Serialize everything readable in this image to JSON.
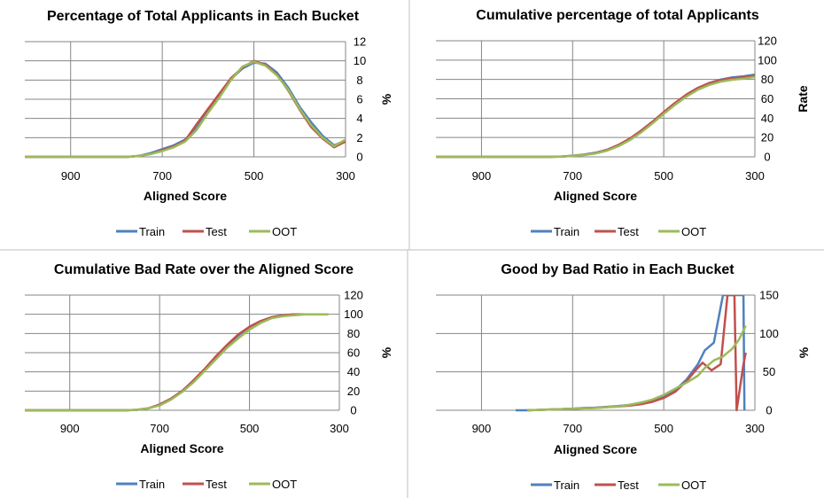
{
  "charts": [
    {
      "title": "Percentage of Total Applicants in Each Bucket",
      "xlabel": "Aligned Score",
      "ylabel": "%",
      "xlim": [
        1000,
        300
      ],
      "x_ticks": [
        900,
        700,
        500,
        300
      ],
      "ylim": [
        0,
        12
      ],
      "y_ticks": [
        0,
        2,
        4,
        6,
        8,
        10,
        12
      ],
      "legend": [
        "Train",
        "Test",
        "OOT"
      ]
    },
    {
      "title": "Cumulative percentage of total Applicants",
      "xlabel": "Aligned Score",
      "ylabel": "Rate",
      "xlim": [
        1000,
        300
      ],
      "x_ticks": [
        900,
        700,
        500,
        300
      ],
      "ylim": [
        0,
        120
      ],
      "y_ticks": [
        0,
        20,
        40,
        60,
        80,
        100,
        120
      ],
      "legend": [
        "Train",
        "Test",
        "OOT"
      ]
    },
    {
      "title": "Cumulative Bad Rate over the Aligned Score",
      "xlabel": "Aligned Score",
      "ylabel": "%",
      "xlim": [
        1000,
        300
      ],
      "x_ticks": [
        900,
        700,
        500,
        300
      ],
      "ylim": [
        0,
        120
      ],
      "y_ticks": [
        0,
        20,
        40,
        60,
        80,
        100,
        120
      ],
      "legend": [
        "Train",
        "Test",
        "OOT"
      ]
    },
    {
      "title": "Good by Bad Ratio in Each Bucket",
      "xlabel": "Aligned Score",
      "ylabel": "%",
      "xlim": [
        1000,
        300
      ],
      "x_ticks": [
        900,
        700,
        500,
        300
      ],
      "ylim": [
        0,
        150
      ],
      "y_ticks": [
        0,
        50,
        100,
        150
      ],
      "legend": [
        "Train",
        "Test",
        "OOT"
      ]
    }
  ],
  "chart_data": [
    {
      "type": "line",
      "title": "Percentage of Total Applicants in Each Bucket",
      "xlabel": "Aligned Score",
      "ylabel": "%",
      "xlim": [
        1000,
        300
      ],
      "ylim": [
        0,
        12
      ],
      "grid": true,
      "legend_position": "bottom",
      "x": [
        1000,
        975,
        950,
        925,
        900,
        875,
        850,
        825,
        800,
        775,
        750,
        725,
        700,
        675,
        650,
        625,
        600,
        575,
        550,
        525,
        500,
        475,
        450,
        425,
        400,
        375,
        350,
        325,
        300
      ],
      "series": [
        {
          "name": "Train",
          "color": "#4f81bd",
          "values": [
            0,
            0,
            0,
            0,
            0,
            0,
            0,
            0,
            0,
            0,
            0.1,
            0.4,
            0.8,
            1.2,
            1.8,
            3.0,
            4.8,
            6.3,
            8.1,
            9.2,
            9.8,
            9.7,
            8.8,
            7.2,
            5.2,
            3.6,
            2.2,
            1.2,
            1.7
          ]
        },
        {
          "name": "Test",
          "color": "#c0504d",
          "values": [
            0,
            0,
            0,
            0,
            0,
            0,
            0,
            0,
            0,
            0,
            0.1,
            0.3,
            0.7,
            1.1,
            1.7,
            3.4,
            5.0,
            6.6,
            8.2,
            9.3,
            10.0,
            9.6,
            8.6,
            6.9,
            4.9,
            3.1,
            1.9,
            1.0,
            1.6
          ]
        },
        {
          "name": "OOT",
          "color": "#9bbb59",
          "values": [
            0,
            0,
            0,
            0,
            0,
            0,
            0,
            0,
            0,
            0,
            0.1,
            0.3,
            0.6,
            1.0,
            1.6,
            2.8,
            4.6,
            6.2,
            8.0,
            9.4,
            9.9,
            9.5,
            8.5,
            7.0,
            5.0,
            3.3,
            2.0,
            1.1,
            1.8
          ]
        }
      ]
    },
    {
      "type": "line",
      "title": "Cumulative percentage of total Applicants",
      "xlabel": "Aligned Score",
      "ylabel": "Rate",
      "xlim": [
        1000,
        300
      ],
      "ylim": [
        0,
        120
      ],
      "grid": true,
      "legend_position": "bottom",
      "x": [
        1000,
        975,
        950,
        925,
        900,
        875,
        850,
        825,
        800,
        775,
        750,
        725,
        700,
        675,
        650,
        625,
        600,
        575,
        550,
        525,
        500,
        475,
        450,
        425,
        400,
        375,
        350,
        325,
        300
      ],
      "series": [
        {
          "name": "Train",
          "color": "#4f81bd",
          "values": [
            0,
            0,
            0,
            0,
            0,
            0,
            0,
            0,
            0,
            0,
            0,
            0.4,
            1.2,
            2.4,
            4.2,
            7.2,
            12.0,
            18.3,
            26.4,
            35.6,
            45.4,
            55.1,
            63.9,
            71.1,
            76.3,
            79.9,
            82.1,
            83.3,
            85.0
          ]
        },
        {
          "name": "Test",
          "color": "#c0504d",
          "values": [
            0,
            0,
            0,
            0,
            0,
            0,
            0,
            0,
            0,
            0,
            0,
            0.3,
            1.0,
            2.1,
            3.8,
            7.2,
            12.2,
            18.8,
            27.0,
            36.3,
            46.3,
            55.9,
            64.5,
            71.4,
            76.3,
            79.4,
            81.3,
            82.3,
            83.9
          ]
        },
        {
          "name": "OOT",
          "color": "#9bbb59",
          "values": [
            0,
            0,
            0,
            0,
            0,
            0,
            0,
            0,
            0,
            0,
            0,
            0.3,
            0.9,
            1.9,
            3.5,
            6.3,
            10.9,
            17.1,
            25.1,
            34.5,
            44.4,
            53.9,
            62.4,
            69.4,
            74.4,
            77.7,
            79.7,
            80.8,
            82.6
          ]
        }
      ]
    },
    {
      "type": "line",
      "title": "Cumulative Bad Rate over the Aligned Score",
      "xlabel": "Aligned Score",
      "ylabel": "%",
      "xlim": [
        1000,
        300
      ],
      "ylim": [
        0,
        120
      ],
      "grid": true,
      "legend_position": "bottom",
      "x": [
        1000,
        975,
        950,
        925,
        900,
        875,
        850,
        825,
        800,
        775,
        750,
        725,
        700,
        675,
        650,
        625,
        600,
        575,
        550,
        525,
        500,
        475,
        450,
        425,
        400,
        375,
        350,
        325
      ],
      "series": [
        {
          "name": "Train",
          "color": "#4f81bd",
          "values": [
            0,
            0,
            0,
            0,
            0,
            0,
            0,
            0,
            0,
            0,
            0.5,
            2,
            6,
            12,
            20,
            30,
            42,
            55,
            67,
            78,
            87,
            93,
            97,
            99,
            100,
            100,
            100,
            100
          ]
        },
        {
          "name": "Test",
          "color": "#c0504d",
          "values": [
            0,
            0,
            0,
            0,
            0,
            0,
            0,
            0,
            0,
            0,
            0.5,
            2,
            6,
            12,
            20,
            31,
            43,
            56,
            68,
            79,
            87,
            93,
            97,
            99,
            100,
            100,
            100,
            100
          ]
        },
        {
          "name": "OOT",
          "color": "#9bbb59",
          "values": [
            0,
            0,
            0,
            0,
            0,
            0,
            0,
            0,
            0,
            0,
            0.5,
            2,
            5,
            11,
            19,
            29,
            41,
            53,
            65,
            75,
            84,
            91,
            96,
            98,
            99,
            100,
            100,
            100
          ]
        }
      ]
    },
    {
      "type": "line",
      "title": "Good by Bad Ratio in Each Bucket",
      "xlabel": "Aligned Score",
      "ylabel": "%",
      "xlim": [
        1000,
        300
      ],
      "ylim": [
        0,
        150
      ],
      "grid": true,
      "legend_position": "bottom",
      "series": [
        {
          "name": "Train",
          "color": "#4f81bd",
          "x": [
            825,
            800,
            775,
            750,
            725,
            700,
            675,
            650,
            625,
            600,
            575,
            550,
            525,
            500,
            475,
            450,
            425,
            410,
            390,
            370,
            355,
            340,
            325,
            323
          ],
          "values": [
            0,
            0,
            0.5,
            1,
            1.5,
            2,
            3,
            3.5,
            4.5,
            5.5,
            7,
            10,
            13,
            18,
            26,
            40,
            60,
            78,
            88,
            150,
            150,
            150,
            150,
            0
          ]
        },
        {
          "name": "Test",
          "color": "#c0504d",
          "x": [
            800,
            775,
            750,
            725,
            700,
            675,
            650,
            625,
            600,
            575,
            550,
            525,
            500,
            475,
            450,
            430,
            415,
            395,
            375,
            360,
            345,
            340,
            325,
            320
          ],
          "values": [
            0,
            0.5,
            1,
            1.5,
            2,
            2.5,
            3,
            4,
            5,
            6,
            8,
            11,
            16,
            24,
            38,
            52,
            62,
            52,
            60,
            150,
            150,
            0,
            60,
            75
          ]
        },
        {
          "name": "OOT",
          "color": "#9bbb59",
          "x": [
            800,
            775,
            750,
            725,
            700,
            675,
            650,
            625,
            600,
            575,
            550,
            525,
            500,
            475,
            450,
            425,
            410,
            390,
            370,
            350,
            335,
            320
          ],
          "values": [
            0,
            0.5,
            1,
            1.5,
            2,
            2.5,
            3,
            4,
            5,
            7,
            10,
            14,
            20,
            28,
            36,
            45,
            55,
            65,
            70,
            80,
            92,
            110
          ]
        }
      ]
    }
  ]
}
